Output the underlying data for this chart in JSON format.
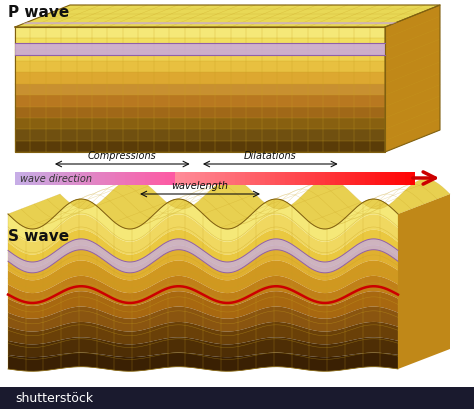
{
  "title_p": "P wave",
  "title_s": "S wave",
  "label_compressions": "Compressions",
  "label_dilatations": "Dilatations",
  "label_wave_direction": "wave direction",
  "label_wavelength": "wavelength",
  "bg_color": "#ffffff",
  "p_layer_colors": [
    "#f5e070",
    "#f0d060",
    "#e0b840",
    "#c89030",
    "#a87020",
    "#7a5010",
    "#5a3505"
  ],
  "s_layer_colors": [
    "#f5e070",
    "#f0d060",
    "#e0b840",
    "#c89030",
    "#a87020",
    "#7a5010",
    "#5a3505"
  ],
  "top_face_color": "#e8d050",
  "right_face_color": "#c8901c",
  "p_stripe_color1": "#d0a8e0",
  "p_stripe_color2": "#e8d0f4",
  "s_stripe_color": "#c8b8e0",
  "s_red_color": "#cc0000",
  "grid_color": "#c8a020",
  "text_color": "#111111",
  "arrow_red": "#cc0000"
}
